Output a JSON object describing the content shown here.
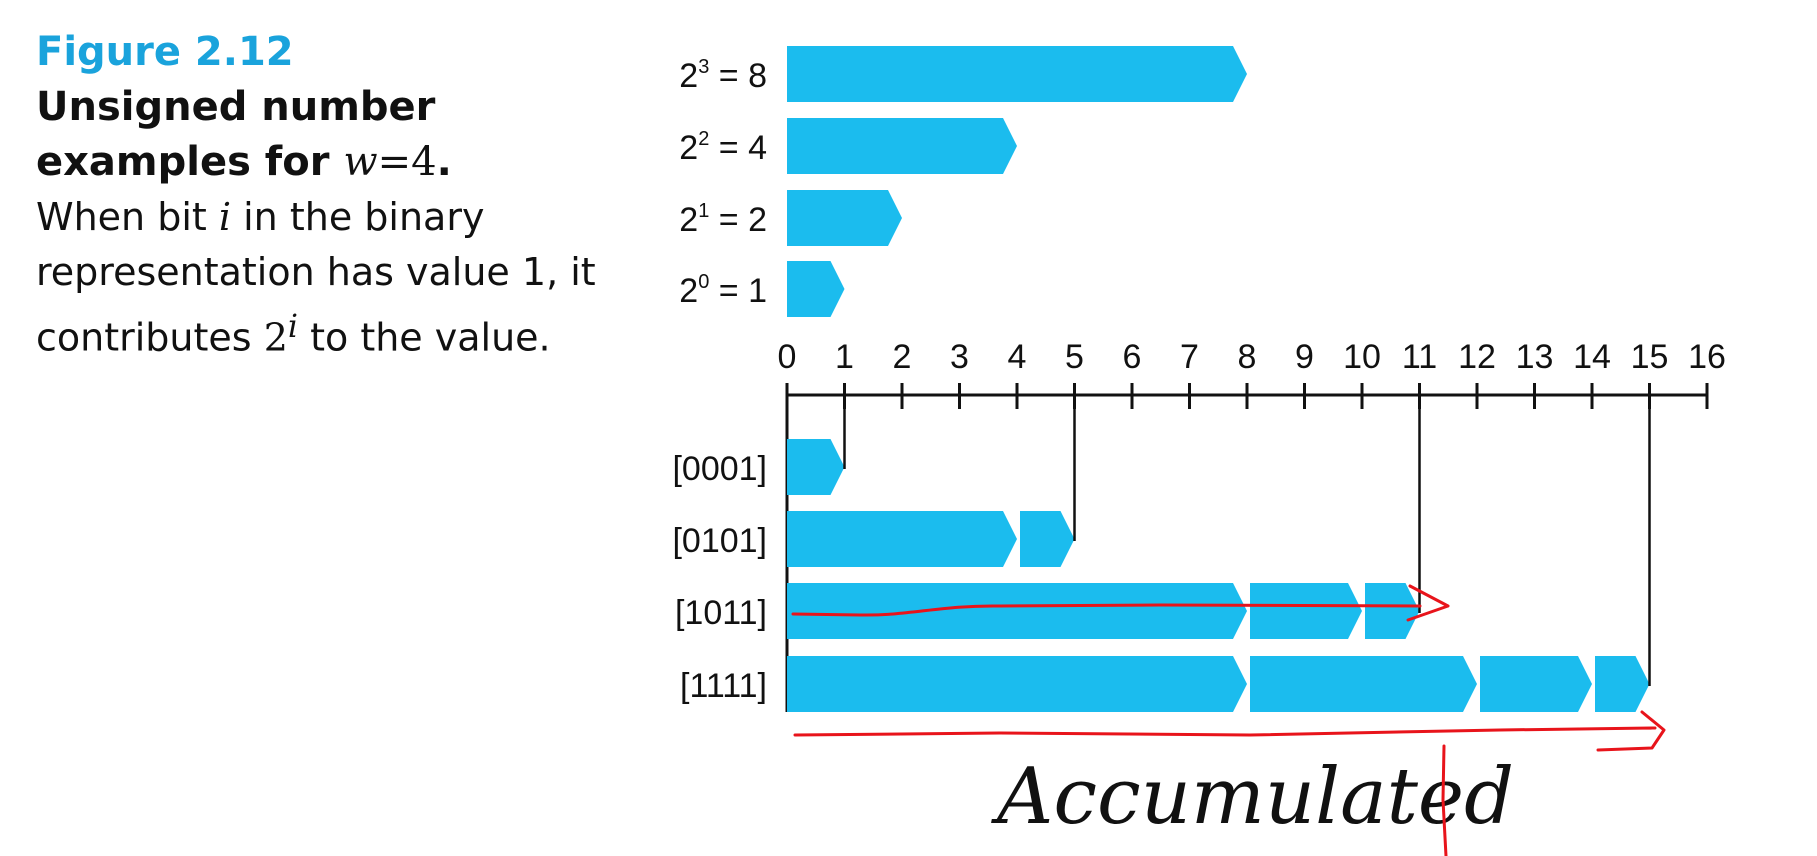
{
  "caption": {
    "figure_label": "Figure 2.12",
    "title_text": "Unsigned number examples for",
    "title_var": "w",
    "title_eq": "=",
    "title_num": "4",
    "title_end": ".",
    "body_1": "When bit",
    "body_var_i": "i",
    "body_2": "in the binary representation has value 1, it contributes",
    "body_pow_base": "2",
    "body_pow_exp": "i",
    "body_3": "to the value."
  },
  "powers": [
    {
      "base": "2",
      "exp": "3",
      "rest": "= 8",
      "value": 8
    },
    {
      "base": "2",
      "exp": "2",
      "rest": "= 4",
      "value": 4
    },
    {
      "base": "2",
      "exp": "1",
      "rest": "= 2",
      "value": 2
    },
    {
      "base": "2",
      "exp": "0",
      "rest": "= 1",
      "value": 1
    }
  ],
  "axis": {
    "min": 0,
    "max": 16,
    "tick_labels": [
      "0",
      "1",
      "2",
      "3",
      "4",
      "5",
      "6",
      "7",
      "8",
      "9",
      "10",
      "11",
      "12",
      "13",
      "14",
      "15",
      "16"
    ]
  },
  "examples": [
    {
      "label": "[0001]",
      "segments": [
        1
      ],
      "total": 1
    },
    {
      "label": "[0101]",
      "segments": [
        4,
        1
      ],
      "total": 5
    },
    {
      "label": "[1011]",
      "segments": [
        8,
        2,
        1
      ],
      "total": 11
    },
    {
      "label": "[1111]",
      "segments": [
        8,
        4,
        2,
        1
      ],
      "total": 15
    }
  ],
  "annotation": {
    "text": "Accumulated"
  },
  "colors": {
    "bar": "#1bbcee",
    "accent": "#1aa3dc",
    "pen": "#e8141b",
    "line": "#111111"
  }
}
